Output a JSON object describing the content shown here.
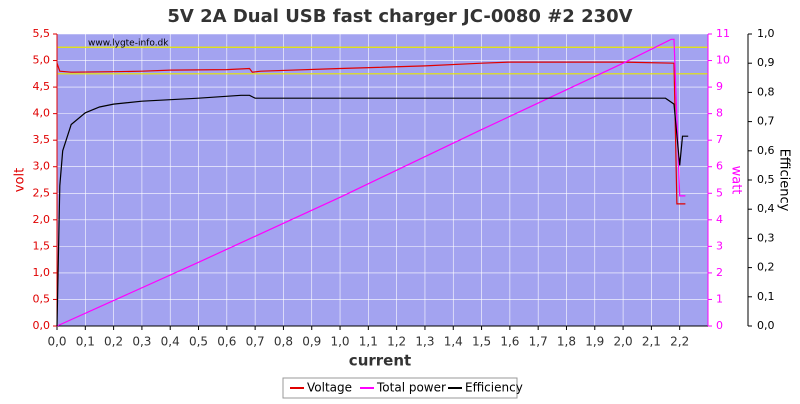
{
  "chart_data": {
    "type": "line",
    "title": "5V 2A Dual USB fast charger JC-0080 #2 230V",
    "watermark": "www.lygte-info.dk",
    "x_label": "current",
    "y_label": "volt",
    "y2_label": "watt",
    "y3_label": "Efficiency",
    "xlim": [
      0,
      2.3
    ],
    "xticks": [
      {
        "value": 0,
        "label": "0,0"
      },
      {
        "value": 0.1,
        "label": "0,1"
      },
      {
        "value": 0.2,
        "label": "0,2"
      },
      {
        "value": 0.3,
        "label": "0,3"
      },
      {
        "value": 0.4,
        "label": "0,4"
      },
      {
        "value": 0.5,
        "label": "0,5"
      },
      {
        "value": 0.6,
        "label": "0,6"
      },
      {
        "value": 0.7,
        "label": "0,7"
      },
      {
        "value": 0.8,
        "label": "0,8"
      },
      {
        "value": 0.9,
        "label": "0,9"
      },
      {
        "value": 1.0,
        "label": "1,0"
      },
      {
        "value": 1.1,
        "label": "1,1"
      },
      {
        "value": 1.2,
        "label": "1,2"
      },
      {
        "value": 1.3,
        "label": "1,3"
      },
      {
        "value": 1.4,
        "label": "1,4"
      },
      {
        "value": 1.5,
        "label": "1,5"
      },
      {
        "value": 1.6,
        "label": "1,6"
      },
      {
        "value": 1.7,
        "label": "1,7"
      },
      {
        "value": 1.8,
        "label": "1,8"
      },
      {
        "value": 1.9,
        "label": "1,9"
      },
      {
        "value": 2.0,
        "label": "2,0"
      },
      {
        "value": 2.1,
        "label": "2,1"
      },
      {
        "value": 2.2,
        "label": "2,2"
      }
    ],
    "ylim": [
      0,
      5.5
    ],
    "yticks": [
      {
        "value": 0,
        "label": "0,0"
      },
      {
        "value": 0.5,
        "label": "0,5"
      },
      {
        "value": 1.0,
        "label": "1,0"
      },
      {
        "value": 1.5,
        "label": "1,5"
      },
      {
        "value": 2.0,
        "label": "2,0"
      },
      {
        "value": 2.5,
        "label": "2,5"
      },
      {
        "value": 3.0,
        "label": "3,0"
      },
      {
        "value": 3.5,
        "label": "3,5"
      },
      {
        "value": 4.0,
        "label": "4,0"
      },
      {
        "value": 4.5,
        "label": "4,5"
      },
      {
        "value": 5.0,
        "label": "5,0"
      },
      {
        "value": 5.5,
        "label": "5,5"
      }
    ],
    "y2lim": [
      0,
      11
    ],
    "y2ticks": [
      0,
      1,
      2,
      3,
      4,
      5,
      6,
      7,
      8,
      9,
      10,
      11
    ],
    "y3lim": [
      0,
      1
    ],
    "y3ticks": [
      {
        "value": 0,
        "label": "0,0"
      },
      {
        "value": 0.1,
        "label": "0,1"
      },
      {
        "value": 0.2,
        "label": "0,2"
      },
      {
        "value": 0.3,
        "label": "0,3"
      },
      {
        "value": 0.4,
        "label": "0,4"
      },
      {
        "value": 0.5,
        "label": "0,5"
      },
      {
        "value": 0.6,
        "label": "0,6"
      },
      {
        "value": 0.7,
        "label": "0,7"
      },
      {
        "value": 0.8,
        "label": "0,8"
      },
      {
        "value": 0.9,
        "label": "0,9"
      },
      {
        "value": 1.0,
        "label": "1,0"
      }
    ],
    "reference_lines": [
      4.75,
      5.25
    ],
    "reference_color": "#e8e800",
    "grid": true,
    "series": [
      {
        "name": "Voltage",
        "color": "#e00000",
        "axis": "y",
        "x": [
          0,
          0.01,
          0.05,
          0.2,
          0.3,
          0.4,
          0.6,
          0.68,
          0.69,
          0.72,
          1.0,
          1.3,
          1.5,
          1.6,
          2.0,
          2.18,
          2.19,
          2.2,
          2.22
        ],
        "values": [
          4.95,
          4.8,
          4.78,
          4.79,
          4.8,
          4.82,
          4.83,
          4.85,
          4.78,
          4.8,
          4.85,
          4.9,
          4.95,
          4.97,
          4.97,
          4.95,
          2.3,
          2.3,
          2.3
        ]
      },
      {
        "name": "Total power",
        "color": "#ff00ff",
        "axis": "y2",
        "x": [
          0,
          0.5,
          1.0,
          1.5,
          2.0,
          2.17,
          2.18,
          2.2,
          2.22
        ],
        "values": [
          0,
          2.4,
          4.85,
          7.4,
          9.9,
          10.8,
          10.8,
          4.9,
          4.9
        ]
      },
      {
        "name": "Efficiency",
        "color": "#000000",
        "axis": "y3",
        "x": [
          0,
          0.01,
          0.02,
          0.05,
          0.1,
          0.15,
          0.2,
          0.3,
          0.5,
          0.65,
          0.68,
          0.7,
          1.1,
          2.15,
          2.18,
          2.2,
          2.21,
          2.23
        ],
        "values": [
          0,
          0.48,
          0.6,
          0.69,
          0.73,
          0.75,
          0.76,
          0.77,
          0.78,
          0.79,
          0.79,
          0.78,
          0.78,
          0.78,
          0.76,
          0.55,
          0.65,
          0.65
        ]
      }
    ]
  }
}
